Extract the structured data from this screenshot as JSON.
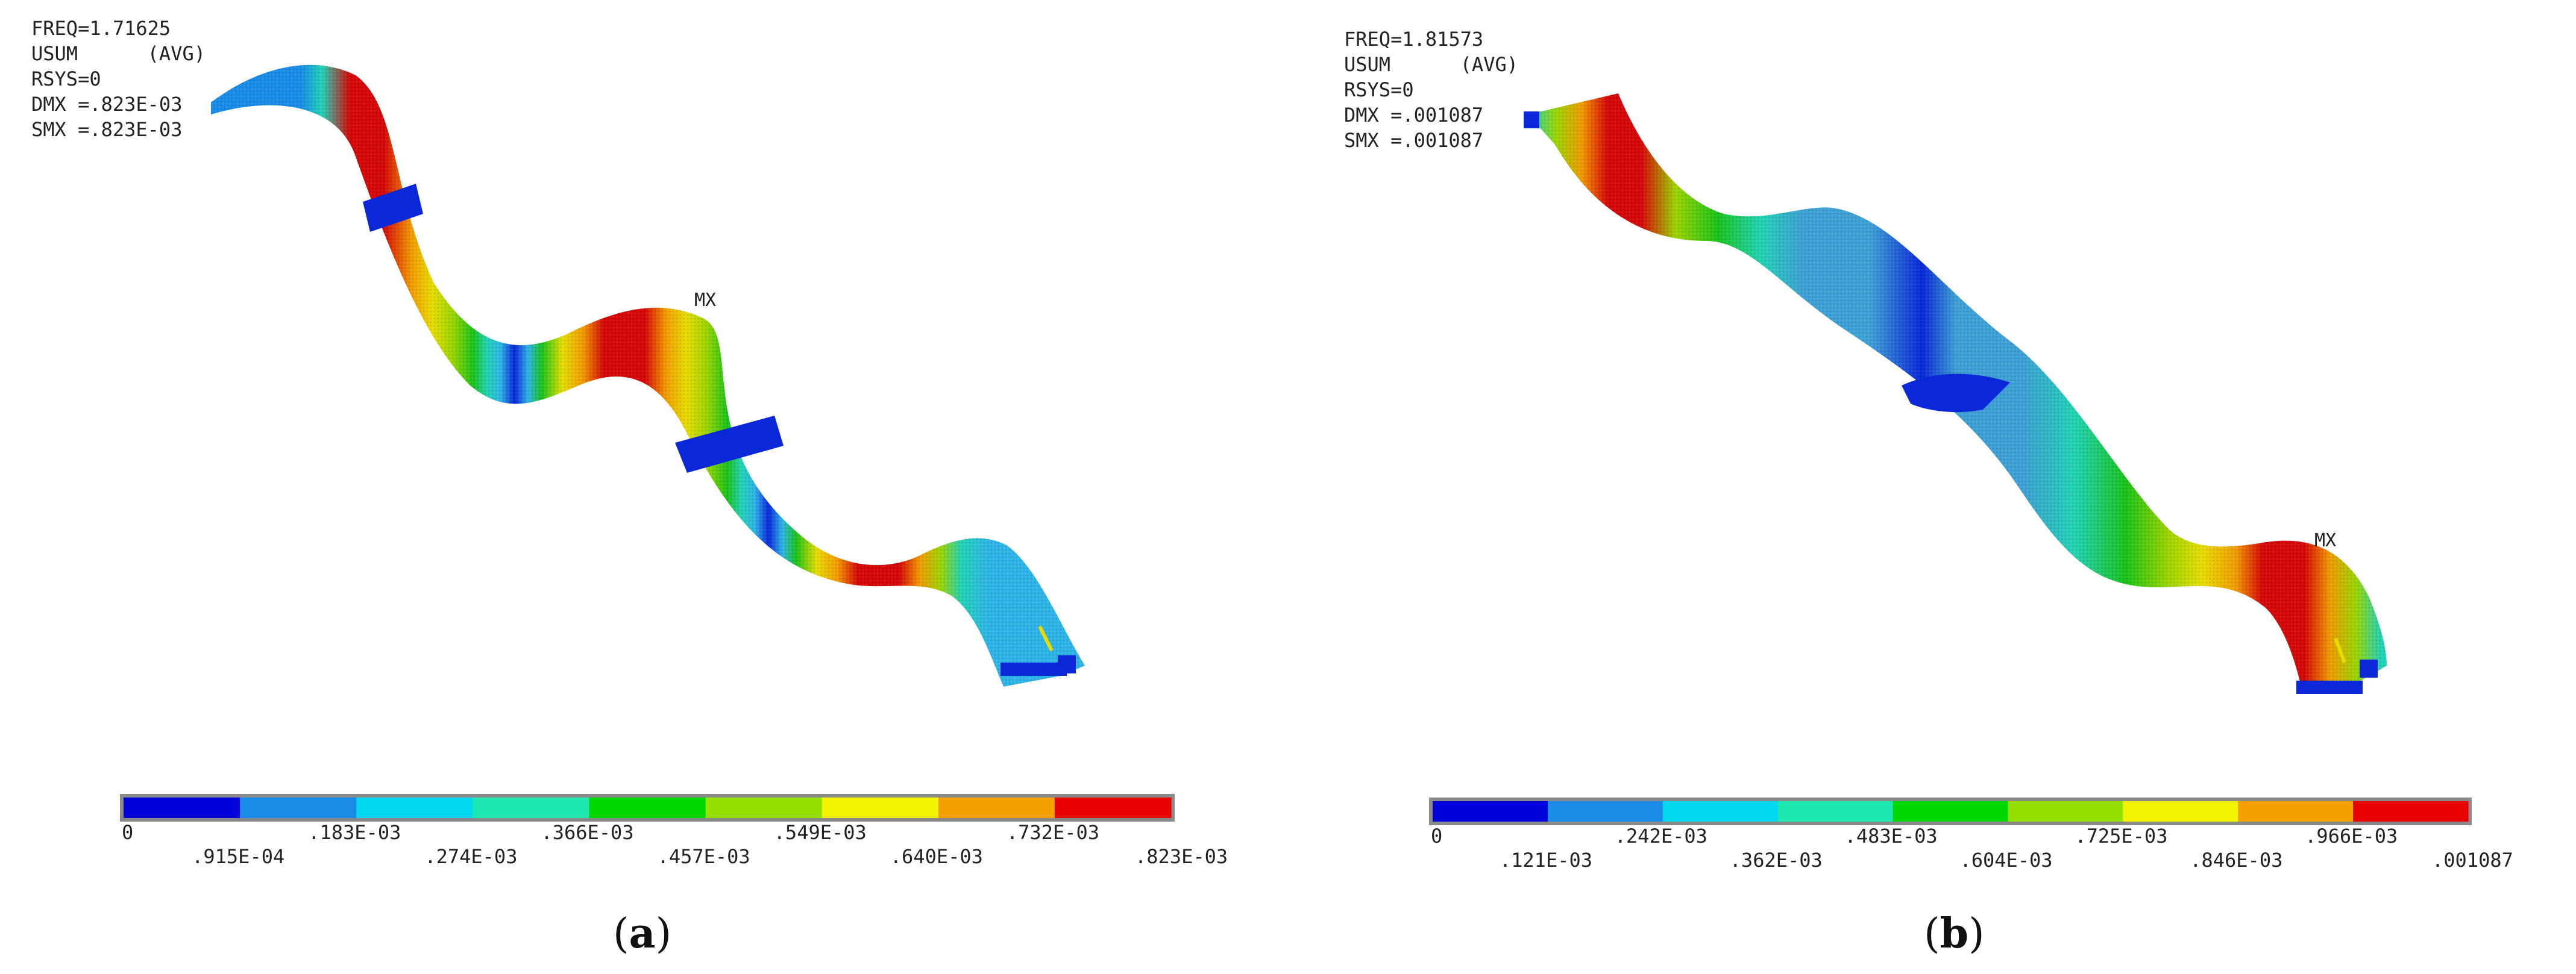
{
  "panels": [
    {
      "info_lines": [
        "FREQ=1.71625",
        "USUM      (AVG)",
        "RSYS=0",
        "DMX =.823E-03",
        "SMX =.823E-03"
      ],
      "mx_label": "MX",
      "legend_ticks_upper": [
        "0",
        ".183E-03",
        ".366E-03",
        ".549E-03",
        ".732E-03"
      ],
      "legend_ticks_lower": [
        ".915E-04",
        ".274E-03",
        ".457E-03",
        ".640E-03",
        ".823E-03"
      ],
      "caption_letter": "a",
      "caption_open": "(",
      "caption_close": ")"
    },
    {
      "info_lines": [
        "FREQ=1.81573",
        "USUM      (AVG)",
        "RSYS=0",
        "DMX =.001087",
        "SMX =.001087"
      ],
      "mx_label": "MX",
      "legend_ticks_upper": [
        "0",
        ".242E-03",
        ".483E-03",
        ".725E-03",
        ".966E-03"
      ],
      "legend_ticks_lower": [
        ".121E-03",
        ".362E-03",
        ".604E-03",
        ".846E-03",
        ".001087"
      ],
      "caption_letter": "b",
      "caption_open": "(",
      "caption_close": ")"
    }
  ],
  "legend_colors": [
    "#0000d8",
    "#1a8ce8",
    "#00d8f0",
    "#1ee8b0",
    "#00d600",
    "#96e000",
    "#f4f400",
    "#f4a000",
    "#e80000"
  ],
  "band_colors": {
    "red": "#d40808",
    "orange": "#f09a00",
    "yellow": "#e6dc00",
    "lime": "#9cd400",
    "green": "#1ac21a",
    "aqua": "#22d2b4",
    "cyan": "#2eb4e6",
    "blue": "#0a28d8",
    "lightblue": "#3ea0d4"
  }
}
